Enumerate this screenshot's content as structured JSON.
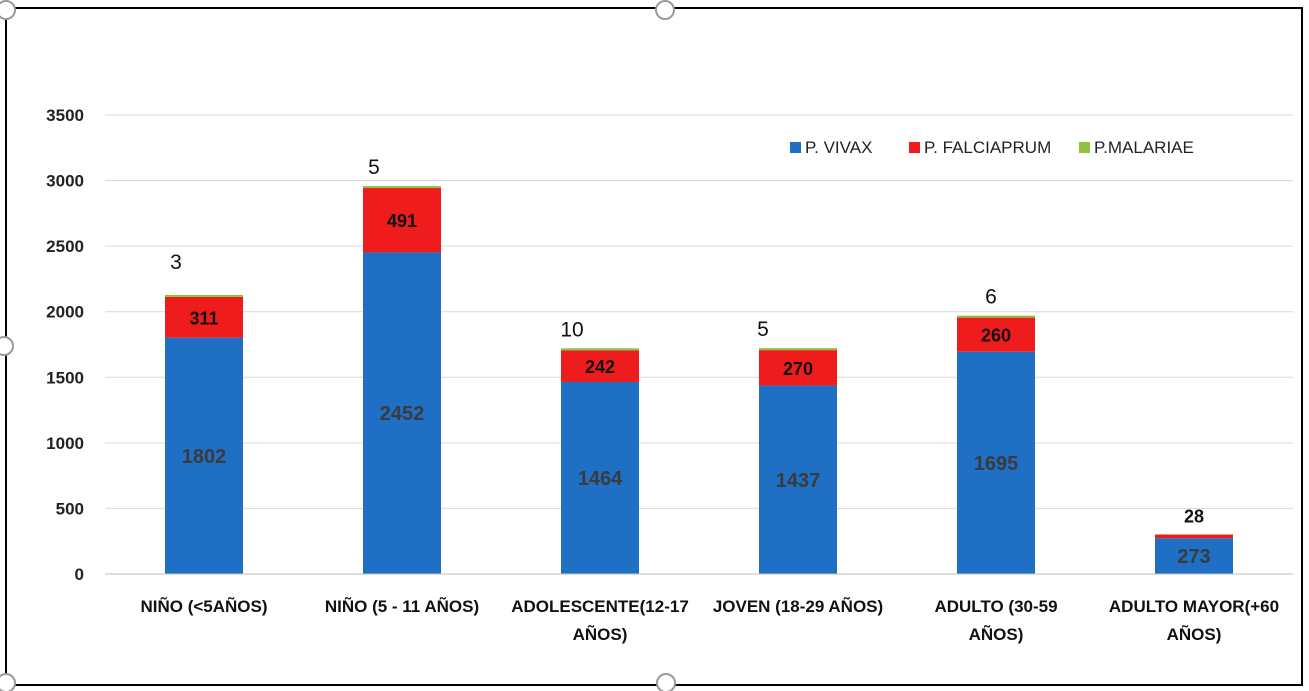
{
  "chart_data": {
    "type": "bar",
    "stacked": true,
    "categories": [
      [
        "NIÑO (<5AÑOS)"
      ],
      [
        "NIÑO (5 - 11 AÑOS)"
      ],
      [
        "ADOLESCENTE(12-17",
        "AÑOS)"
      ],
      [
        "JOVEN (18-29 AÑOS)"
      ],
      [
        "ADULTO (30-59",
        "AÑOS)"
      ],
      [
        "ADULTO MAYOR(+60",
        "AÑOS)"
      ]
    ],
    "series": [
      {
        "name": "P. VIVAX",
        "color": "#1f6fc5",
        "values": [
          1802,
          2452,
          1464,
          1437,
          1695,
          273
        ]
      },
      {
        "name": "P. FALCIAPRUM",
        "color": "#ee1c1c",
        "values": [
          311,
          491,
          242,
          270,
          260,
          28
        ]
      },
      {
        "name": "P.MALARIAE",
        "color": "#8fc23f",
        "values": [
          3,
          5,
          10,
          5,
          6,
          0
        ]
      }
    ],
    "data_labels": {
      "P. VIVAX": [
        "1802",
        "2452",
        "1464",
        "1437",
        "1695",
        "273"
      ],
      "P. FALCIAPRUM": [
        "311",
        "491",
        "242",
        "270",
        "260",
        "28"
      ],
      "P.MALARIAE": [
        "3",
        "5",
        "10",
        "5",
        "6",
        ""
      ]
    },
    "yticks": [
      "0",
      "500",
      "1000",
      "1500",
      "2000",
      "2500",
      "3000",
      "3500"
    ],
    "ylim": [
      0,
      3500
    ],
    "grid": true,
    "legend_position": "top-right",
    "title": "",
    "xlabel": "",
    "ylabel": ""
  }
}
